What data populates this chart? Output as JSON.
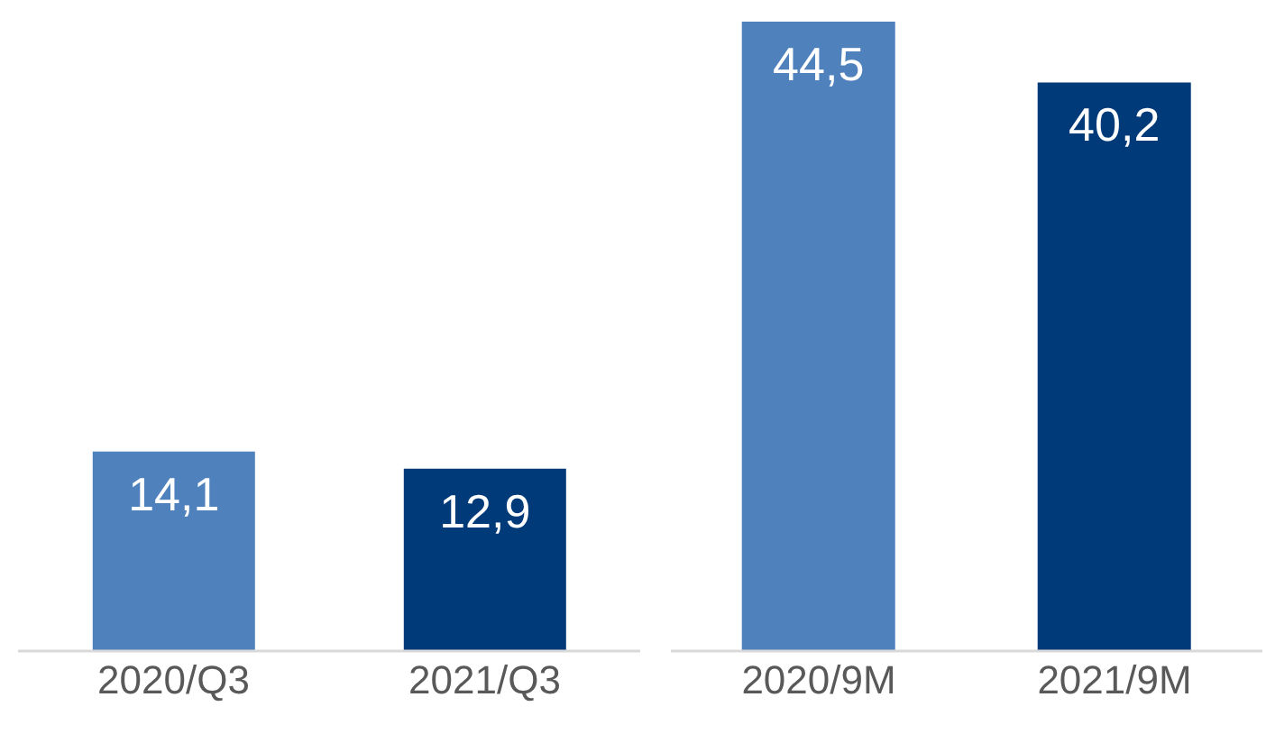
{
  "chart_data": [
    {
      "type": "bar",
      "categories": [
        "2020/Q3",
        "2021/Q3"
      ],
      "values": [
        14.1,
        12.9
      ],
      "colors": [
        "#4f81bd",
        "#003a78"
      ],
      "value_labels": [
        "14,1",
        "12,9"
      ],
      "grid": false,
      "legend": false
    },
    {
      "type": "bar",
      "categories": [
        "2020/9M",
        "2021/9M"
      ],
      "values": [
        44.5,
        40.2
      ],
      "colors": [
        "#4f81bd",
        "#003a78"
      ],
      "value_labels": [
        "44,5",
        "40,2"
      ],
      "grid": false,
      "legend": false
    }
  ]
}
